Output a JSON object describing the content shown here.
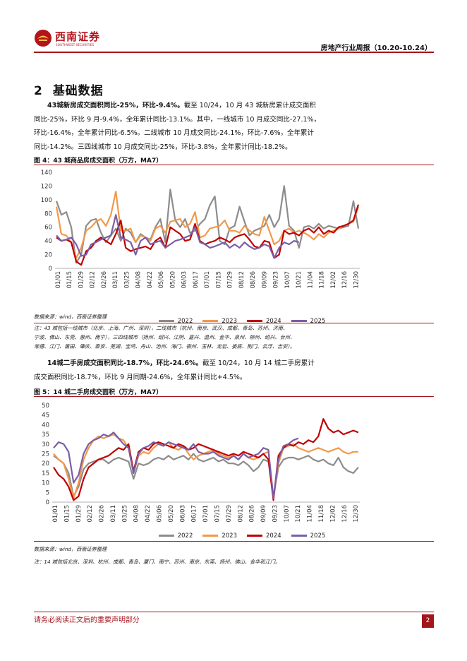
{
  "header": {
    "logo_name": "西南证券",
    "logo_sub": "SOUTHWEST SECURITIES",
    "report_title": "房地产行业周报（10.20-10.24）"
  },
  "section": {
    "number": "2",
    "title": "基础数据"
  },
  "para1": {
    "bold": "43城新房成交面积同比-25%，环比-9.4%。",
    "lines": [
      "截至 10/24，10 月 43 城新房累计成交面积",
      "同比-25%，环比 9 月-9.4%，全年累计同比-13.1%。其中，一线城市 10 月成交同比-27.1%，",
      "环比-16.4%，全年累计同比-6.5%。二线城市 10 月成交同比-24.1%，环比-7.6%，全年累计",
      "同比-14.2%。三四线城市 10 月成交同比-25%，环比-3.8%，全年累计同比-18.2%。"
    ]
  },
  "fig4": {
    "title": "图 4：43 城商品房成交面积（万方，MA7）",
    "source": "数据来源：wind，西南证券整理",
    "note_lines": [
      "注：43 城包括一线城市（北京、上海、广州、深圳），二线城市（杭州、南京、武汉、成都、青岛、苏州、济南、",
      "宁波、佛山、东莞、惠州、南宁），三四线城市（扬州、绍兴、江阴、嘉兴、温州、金华、泉州、柳州、绍兴、台州、",
      "常德、江门、莆田、肇庆、泰安、芜湖、宝鸡、舟山、池州、海门、宿州、玉林、龙岩、娄底、荆门、云浮、吉安）。"
    ]
  },
  "para2": {
    "bold": "14城二手房成交面积同比-18.7%，环比-24.6%。",
    "lines": [
      "截至 10/24，10 月 14 城二手房累计",
      "成交面积同比-18.7%，环比 9 月同期-24.6%，全年累计同比+4.5%。"
    ]
  },
  "fig5": {
    "title": "图 5：14 城二手房成交面积（万方，MA7）",
    "source": "数据来源：wind，西南证券整理",
    "note": "注：14 城包括北京、深圳、杭州、成都、青岛、厦门、南宁、苏州、南京、东莞、扬州、佛山、金华和江门。"
  },
  "footer": {
    "disclaimer": "请务必阅读正文后的重要声明部分",
    "page": "2"
  },
  "chart_data": [
    {
      "type": "line",
      "title": "43 城商品房成交面积（万方，MA7）",
      "ylim": [
        0,
        140
      ],
      "yticks": [
        0,
        20,
        40,
        60,
        80,
        100,
        120,
        140
      ],
      "x_ticks": [
        "01/01",
        "01/15",
        "01/29",
        "02/12",
        "02/26",
        "03/11",
        "03/25",
        "04/08",
        "04/22",
        "05/06",
        "05/20",
        "06/03",
        "06/17",
        "07/01",
        "07/15",
        "07/29",
        "08/12",
        "08/26",
        "09/09",
        "09/23",
        "10/07",
        "10/21",
        "11/04",
        "11/18",
        "12/02",
        "12/16",
        "12/30"
      ],
      "legend_position": "bottom",
      "colors": {
        "2022": "#8c8c8c",
        "2023": "#f2994a",
        "2024": "#c00000",
        "2025": "#7b5ea7"
      },
      "series": [
        {
          "name": "2022",
          "values": [
            98,
            78,
            82,
            60,
            8,
            20,
            62,
            70,
            72,
            52,
            38,
            48,
            58,
            40,
            58,
            52,
            38,
            50,
            45,
            42,
            60,
            72,
            38,
            115,
            70,
            60,
            72,
            52,
            55,
            65,
            72,
            92,
            105,
            40,
            35,
            58,
            62,
            90,
            68,
            48,
            55,
            58,
            62,
            78,
            60,
            72,
            120,
            62,
            55,
            30,
            60,
            62,
            58,
            65,
            58,
            62,
            60,
            58,
            60,
            62,
            98,
            58
          ]
        },
        {
          "name": "2023",
          "values": [
            90,
            50,
            48,
            38,
            15,
            30,
            55,
            60,
            68,
            72,
            62,
            78,
            112,
            55,
            55,
            58,
            38,
            48,
            45,
            40,
            58,
            62,
            52,
            68,
            70,
            72,
            60,
            65,
            82,
            45,
            48,
            58,
            60,
            62,
            70,
            55,
            55,
            52,
            62,
            55,
            50,
            48,
            75,
            55,
            35,
            40,
            55,
            58,
            52,
            55,
            52,
            48,
            42,
            50,
            45,
            52,
            55,
            58,
            62,
            65,
            68,
            90
          ]
        },
        {
          "name": "2024",
          "values": [
            45,
            40,
            42,
            38,
            10,
            5,
            25,
            30,
            40,
            45,
            40,
            35,
            50,
            70,
            30,
            25,
            28,
            30,
            32,
            28,
            40,
            45,
            30,
            60,
            55,
            50,
            40,
            42,
            65,
            40,
            35,
            38,
            40,
            45,
            42,
            38,
            45,
            48,
            50,
            42,
            32,
            30,
            40,
            38,
            15,
            20,
            55,
            50,
            52,
            48,
            55,
            58,
            52,
            60,
            50,
            55,
            52,
            60,
            62,
            65,
            70,
            93
          ]
        },
        {
          "name": "2025",
          "values": [
            48,
            40,
            42,
            45,
            35,
            18,
            20,
            35,
            38,
            42,
            45,
            48,
            78,
            45,
            42,
            38,
            20,
            40,
            45,
            35,
            38,
            40,
            30,
            35,
            40,
            42,
            45,
            48,
            60,
            38,
            35,
            30,
            32,
            35,
            38,
            30,
            35,
            30,
            38,
            32,
            28,
            30,
            35,
            32,
            15,
            30,
            38,
            35,
            40,
            38
          ]
        }
      ]
    },
    {
      "type": "line",
      "title": "14 城二手房成交面积（万方，MA7）",
      "ylim": [
        0,
        50
      ],
      "yticks": [
        0,
        5,
        10,
        15,
        20,
        25,
        30,
        35,
        40,
        45,
        50
      ],
      "x_ticks": [
        "01/01",
        "01/15",
        "01/29",
        "02/12",
        "02/26",
        "03/11",
        "03/25",
        "04/08",
        "04/22",
        "05/06",
        "05/20",
        "06/03",
        "06/17",
        "07/01",
        "07/15",
        "07/29",
        "08/12",
        "08/26",
        "09/09",
        "09/23",
        "10/07",
        "10/21",
        "11/04",
        "11/18",
        "12/02",
        "12/16",
        "12/30"
      ],
      "legend_position": "bottom",
      "colors": {
        "2022": "#8c8c8c",
        "2023": "#f2994a",
        "2024": "#c00000",
        "2025": "#7b5ea7"
      },
      "series": [
        {
          "name": "2022",
          "values": [
            24,
            22,
            20,
            15,
            3,
            8,
            17,
            20,
            21,
            22,
            22,
            20,
            22,
            23,
            22,
            21,
            12,
            20,
            19,
            20,
            22,
            23,
            22,
            24,
            22,
            23,
            24,
            22,
            25,
            22,
            21,
            22,
            23,
            21,
            22,
            20,
            20,
            19,
            21,
            19,
            16,
            18,
            22,
            21,
            3,
            18,
            22,
            23,
            23,
            22,
            23,
            24,
            22,
            21,
            22,
            20,
            19,
            23,
            18,
            16,
            15,
            18
          ]
        },
        {
          "name": "2023",
          "values": [
            25,
            22,
            20,
            12,
            2,
            10,
            22,
            28,
            32,
            34,
            33,
            34,
            35,
            33,
            32,
            28,
            15,
            24,
            26,
            25,
            28,
            30,
            29,
            31,
            28,
            27,
            29,
            25,
            22,
            24,
            25,
            26,
            27,
            25,
            24,
            23,
            24,
            22,
            25,
            23,
            22,
            23,
            25,
            26,
            2,
            20,
            28,
            29,
            30,
            28,
            27,
            26,
            27,
            28,
            27,
            26,
            27,
            28,
            26,
            25,
            26,
            26
          ]
        },
        {
          "name": "2024",
          "values": [
            18,
            14,
            12,
            8,
            1,
            3,
            12,
            18,
            20,
            22,
            23,
            24,
            26,
            28,
            27,
            30,
            16,
            26,
            28,
            27,
            30,
            31,
            30,
            29,
            28,
            30,
            29,
            27,
            28,
            30,
            29,
            28,
            27,
            26,
            25,
            24,
            25,
            24,
            26,
            25,
            24,
            23,
            25,
            22,
            1,
            24,
            28,
            30,
            29,
            31,
            30,
            32,
            31,
            34,
            43,
            38,
            36,
            37,
            35,
            36,
            37,
            36
          ]
        },
        {
          "name": "2025",
          "values": [
            28,
            31,
            30,
            26,
            10,
            14,
            25,
            30,
            32,
            33,
            35,
            34,
            36,
            33,
            30,
            28,
            15,
            25,
            28,
            29,
            31,
            30,
            29,
            31,
            30,
            29,
            28,
            27,
            30,
            26,
            25,
            25,
            26,
            24,
            23,
            22,
            24,
            22,
            25,
            23,
            24,
            25,
            28,
            27,
            2,
            22,
            29,
            30,
            32,
            33
          ]
        }
      ]
    }
  ]
}
